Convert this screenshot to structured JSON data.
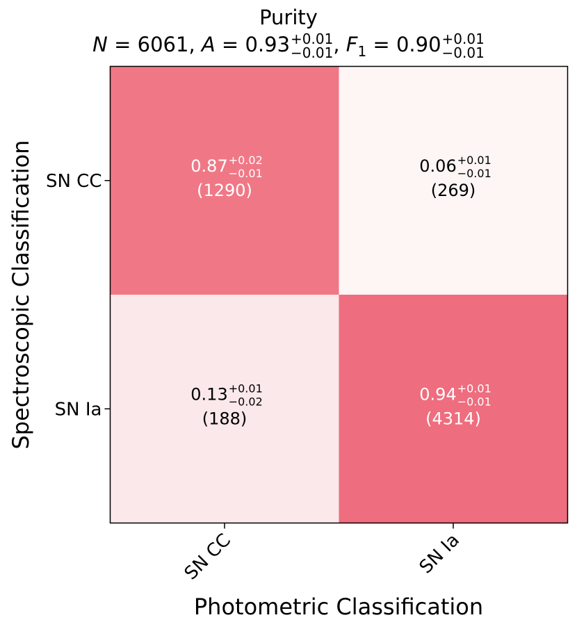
{
  "chart_data": {
    "type": "heatmap",
    "title": "Purity",
    "subtitle": {
      "N": "6061",
      "A": {
        "value": "0.93",
        "plus": "+0.01",
        "minus": "−0.01"
      },
      "F1": {
        "value": "0.90",
        "plus": "+0.01",
        "minus": "−0.01"
      }
    },
    "xlabel": "Photometric Classification",
    "ylabel": "Spectroscopic Classification",
    "x_categories": [
      "SN CC",
      "SN Ia"
    ],
    "y_categories": [
      "SN CC",
      "SN Ia"
    ],
    "cells": [
      {
        "row": 0,
        "col": 0,
        "value": "0.87",
        "plus": "+0.02",
        "minus": "−0.01",
        "count": "(1290)",
        "color": "#f07886",
        "text_color": "#ffffff"
      },
      {
        "row": 0,
        "col": 1,
        "value": "0.06",
        "plus": "+0.01",
        "minus": "−0.01",
        "count": "(269)",
        "color": "#fef5f5",
        "text_color": "#000000"
      },
      {
        "row": 1,
        "col": 0,
        "value": "0.13",
        "plus": "+0.01",
        "minus": "−0.02",
        "count": "(188)",
        "color": "#fae8ea",
        "text_color": "#000000"
      },
      {
        "row": 1,
        "col": 1,
        "value": "0.94",
        "plus": "+0.01",
        "minus": "−0.01",
        "count": "(4314)",
        "color": "#ee6d7e",
        "text_color": "#ffffff"
      }
    ]
  }
}
